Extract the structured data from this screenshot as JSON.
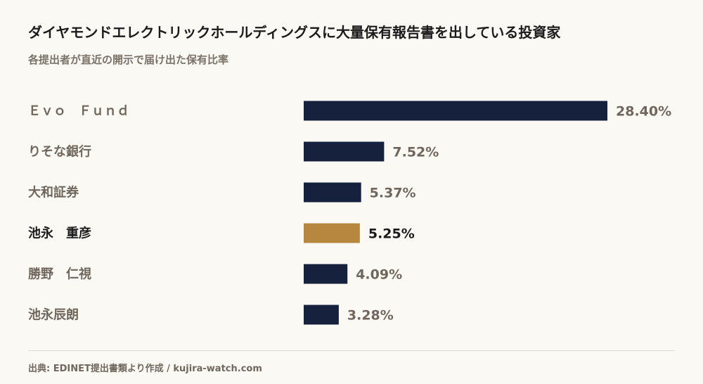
{
  "title": "ダイヤモンドエレクトリックホールディングスに大量保有報告書を出している投資家",
  "subtitle": "各提出者が直近の開示で届け出た保有比率",
  "source": "出典: EDINET提出書類より作成 / kujira-watch.com",
  "colors": {
    "bar": "#16223d",
    "highlight_bar": "#b8873f",
    "label": "#6f675d",
    "highlight_label": "#1b1b1b",
    "background": "#fbf9f3"
  },
  "chart_data": {
    "type": "bar",
    "orientation": "horizontal",
    "categories": [
      "Ｅｖｏ　Ｆｕｎｄ",
      "りそな銀行",
      "大和証券",
      "池永　重彦",
      "勝野　仁視",
      "池永辰朗"
    ],
    "values": [
      28.4,
      7.52,
      5.37,
      5.25,
      4.09,
      3.28
    ],
    "value_labels": [
      "28.40%",
      "7.52%",
      "5.37%",
      "5.25%",
      "4.09%",
      "3.28%"
    ],
    "highlight_index": 3,
    "unit": "%",
    "xlim": [
      0,
      28.4
    ],
    "grid": false,
    "legend": "none"
  }
}
